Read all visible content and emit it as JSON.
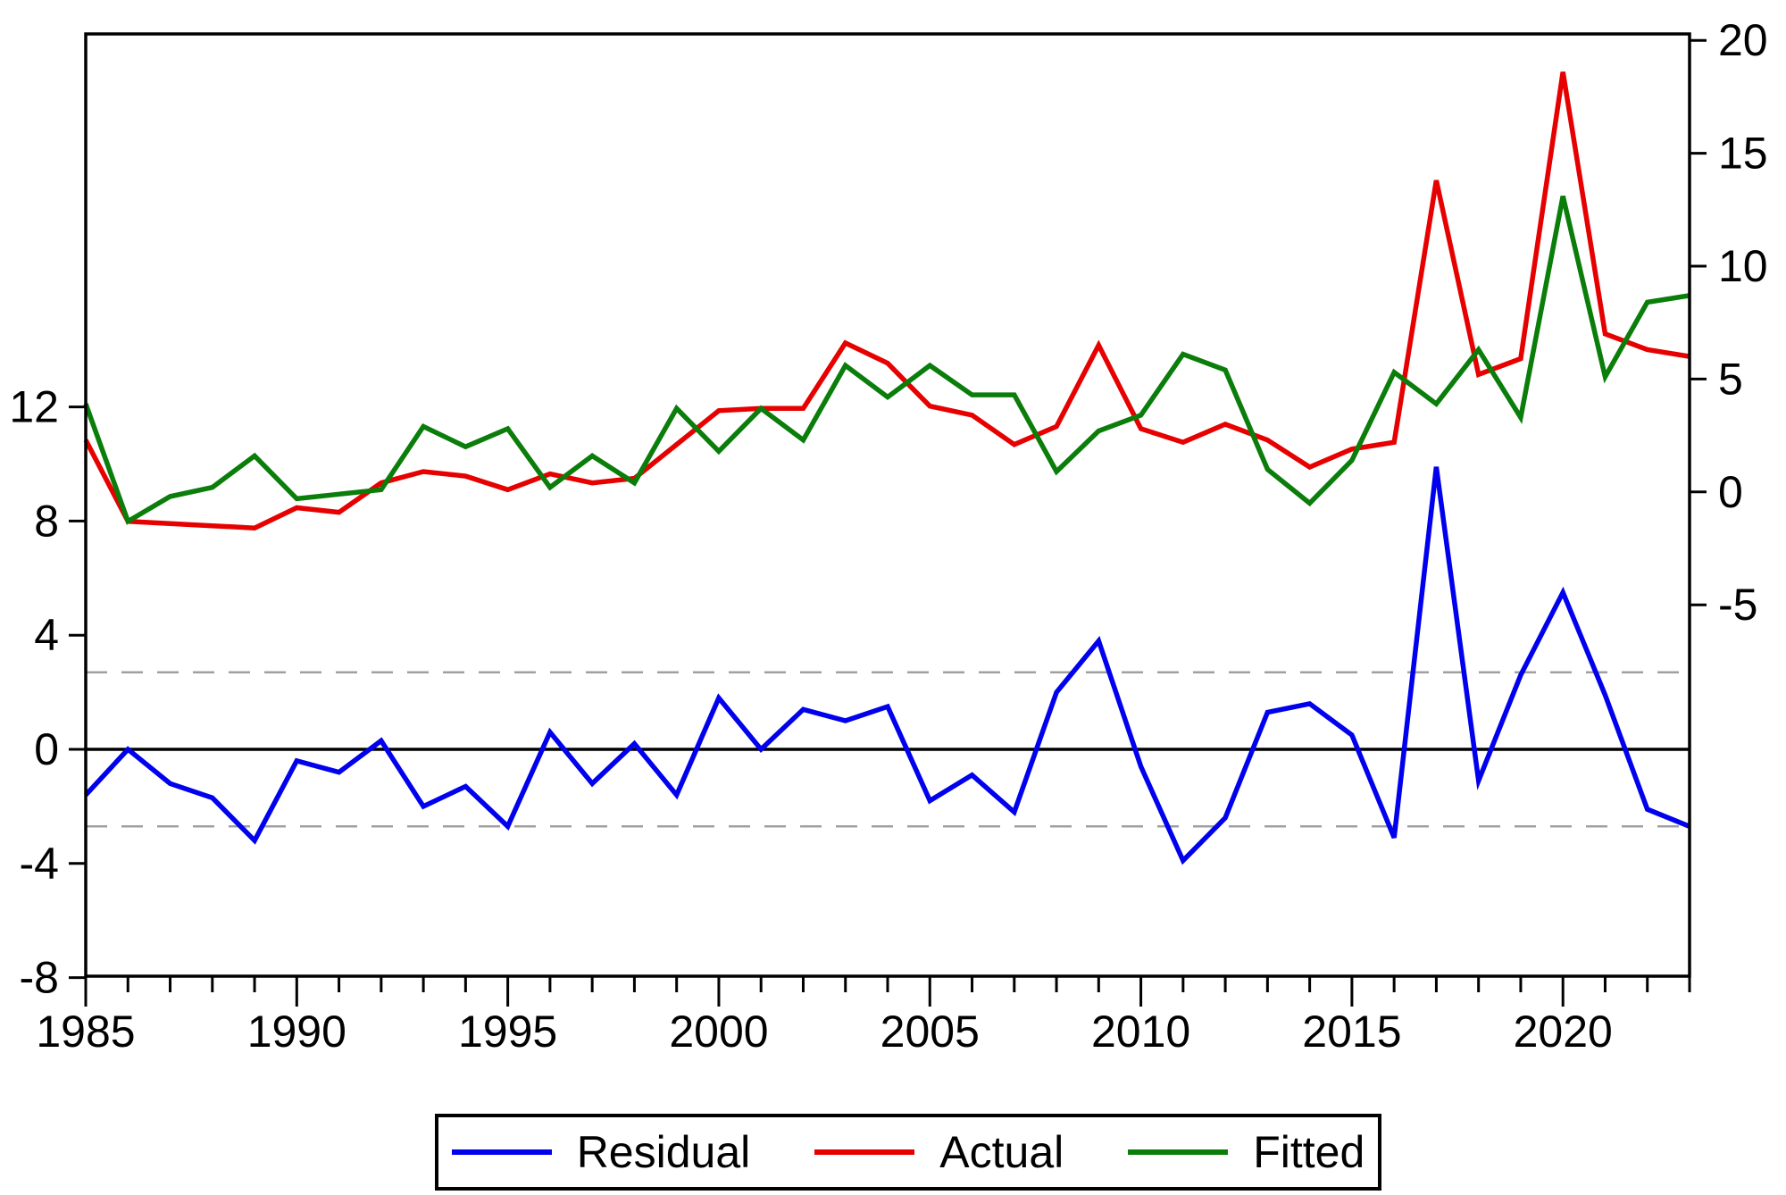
{
  "chart_data": {
    "type": "line",
    "title": "",
    "xlabel": "",
    "ylabel_left": "",
    "ylabel_right": "",
    "grid": false,
    "legend_position": "bottom-center-boxed",
    "x": [
      1985,
      1986,
      1987,
      1988,
      1989,
      1990,
      1991,
      1992,
      1993,
      1994,
      1995,
      1996,
      1997,
      1998,
      1999,
      2000,
      2001,
      2002,
      2003,
      2004,
      2005,
      2006,
      2007,
      2008,
      2009,
      2010,
      2011,
      2012,
      2013,
      2014,
      2015,
      2016,
      2017,
      2018,
      2019,
      2020,
      2021,
      2022,
      2023
    ],
    "x_tick_labels": [
      "1985",
      "1990",
      "1995",
      "2000",
      "2005",
      "2010",
      "2015",
      "2020"
    ],
    "x_major_tick_years": [
      1985,
      1990,
      1995,
      2000,
      2005,
      2010,
      2015,
      2020
    ],
    "series": [
      {
        "name": "Residual",
        "axis": "left",
        "color": "#0000ee",
        "values": [
          -1.6,
          0.0,
          -1.2,
          -1.7,
          -3.2,
          -0.4,
          -0.8,
          0.3,
          -2.0,
          -1.3,
          -2.7,
          0.6,
          -1.2,
          0.2,
          -1.6,
          1.8,
          0.0,
          1.4,
          1.0,
          1.5,
          -1.8,
          -0.9,
          -2.2,
          2.0,
          3.8,
          -0.6,
          -3.9,
          -2.4,
          1.3,
          1.6,
          0.5,
          -3.1,
          9.9,
          -1.1,
          2.6,
          5.5,
          1.9,
          -2.1,
          -2.7
        ]
      },
      {
        "name": "Actual",
        "axis": "right",
        "color": "#e60000",
        "values": [
          2.3,
          -1.3,
          -1.4,
          -1.5,
          -1.6,
          -0.7,
          -0.9,
          0.4,
          0.9,
          0.7,
          0.1,
          0.8,
          0.4,
          0.6,
          2.1,
          3.6,
          3.7,
          3.7,
          6.6,
          5.7,
          3.8,
          3.4,
          2.1,
          2.9,
          6.5,
          2.8,
          2.2,
          3.0,
          2.3,
          1.1,
          1.9,
          2.2,
          13.8,
          5.2,
          5.9,
          18.6,
          7.0,
          6.3,
          6.0
        ]
      },
      {
        "name": "Fitted",
        "axis": "right",
        "color": "#0a7d0a",
        "values": [
          3.9,
          -1.3,
          -0.2,
          0.2,
          1.6,
          -0.3,
          -0.1,
          0.1,
          2.9,
          2.0,
          2.8,
          0.2,
          1.6,
          0.4,
          3.7,
          1.8,
          3.7,
          2.3,
          5.6,
          4.2,
          5.6,
          4.3,
          4.3,
          0.9,
          2.7,
          3.4,
          6.1,
          5.4,
          1.0,
          -0.5,
          1.4,
          5.3,
          3.9,
          6.3,
          3.3,
          13.1,
          5.1,
          8.4,
          8.7
        ]
      }
    ],
    "left_axis": {
      "ticks": [
        12,
        8,
        4,
        0,
        -4,
        -8
      ],
      "tick_labels": [
        "12",
        "8",
        "4",
        "0",
        "-4",
        "-8"
      ]
    },
    "right_axis": {
      "ticks": [
        20,
        15,
        10,
        5,
        0,
        -5
      ],
      "tick_labels": [
        "20",
        "15",
        "10",
        "5",
        "0",
        "-5"
      ]
    },
    "reference_lines": {
      "zero_line_left_value": 0,
      "band_upper_left_value": 2.7,
      "band_lower_left_value": -2.7,
      "zero_line_color": "#000000",
      "band_color": "#a0a0a0"
    },
    "colors": {
      "residual": "#0000ee",
      "actual": "#e60000",
      "fitted": "#0a7d0a",
      "axis": "#000000",
      "background": "#ffffff"
    }
  }
}
